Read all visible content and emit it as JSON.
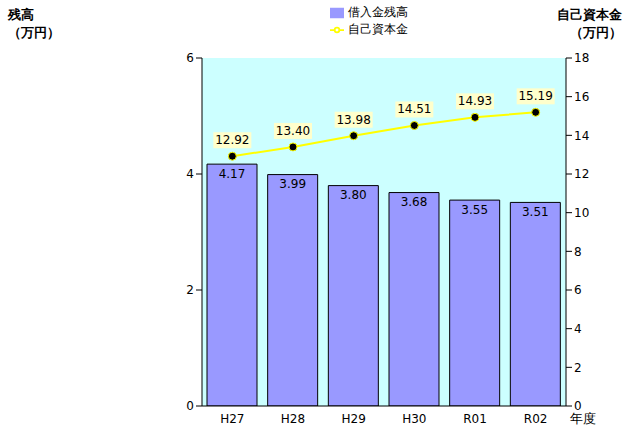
{
  "chart_data": {
    "type": "bar",
    "categories": [
      "H27",
      "H28",
      "H29",
      "H30",
      "R01",
      "R02"
    ],
    "x_label": "年度",
    "y_label": "残高\n（万円）",
    "y2_label": "自己資本金\n（万円）",
    "ylim": [
      0,
      6
    ],
    "yticks": [
      0,
      2,
      4,
      6
    ],
    "y2lim": [
      0,
      18
    ],
    "y2ticks": [
      0,
      2,
      4,
      6,
      8,
      10,
      12,
      14,
      16,
      18
    ],
    "grid": false,
    "legend": "top",
    "data_labels": true,
    "series": [
      {
        "name": "借入金残高",
        "type": "bar",
        "color": "#9999ff",
        "values": [
          4.17,
          3.99,
          3.8,
          3.68,
          3.55,
          3.51
        ],
        "value_labels": [
          "4.17",
          "3.99",
          "3.80",
          "3.68",
          "3.55",
          "3.51"
        ]
      },
      {
        "name": "自己資本金",
        "type": "line",
        "axis": "y2",
        "color": "#ffff00",
        "marker": "circle",
        "values": [
          12.92,
          13.4,
          13.98,
          14.51,
          14.93,
          15.19
        ],
        "value_labels": [
          "12.92",
          "13.40",
          "13.98",
          "14.51",
          "14.93",
          "15.19"
        ]
      }
    ]
  }
}
